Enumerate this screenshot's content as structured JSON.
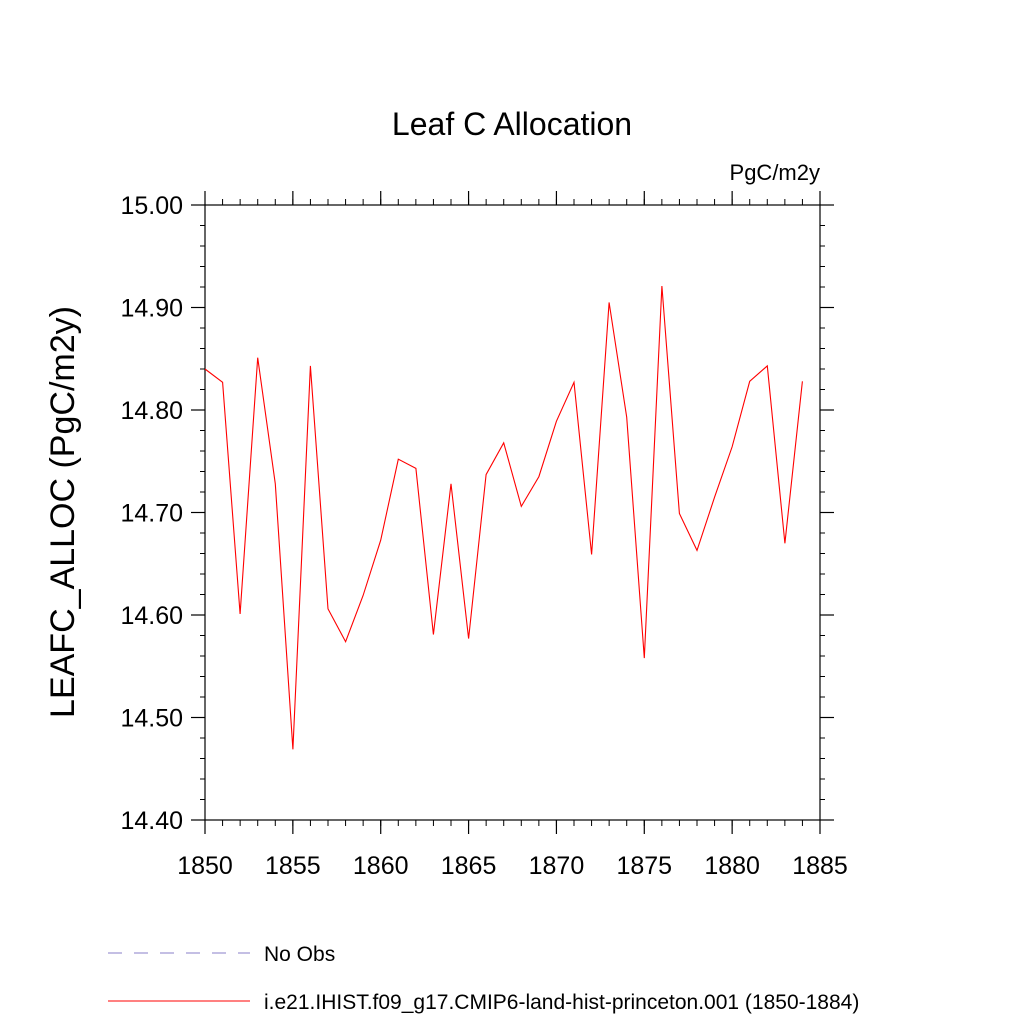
{
  "chart_data": {
    "type": "line",
    "title": "Leaf C Allocation",
    "units_label": "PgC/m2y",
    "ylabel": "LEAFC_ALLOC  (PgC/m2y)",
    "xlabel": "",
    "xlim": [
      1850,
      1885
    ],
    "ylim": [
      14.4,
      15.0
    ],
    "x_ticks": [
      1850,
      1855,
      1860,
      1865,
      1870,
      1875,
      1880,
      1885
    ],
    "x_tick_labels": [
      "1850",
      "1855",
      "1860",
      "1865",
      "1870",
      "1875",
      "1880",
      "1885"
    ],
    "y_ticks": [
      14.4,
      14.5,
      14.6,
      14.7,
      14.8,
      14.9,
      15.0
    ],
    "y_tick_labels": [
      "14.40",
      "14.50",
      "14.60",
      "14.70",
      "14.80",
      "14.90",
      "15.00"
    ],
    "grid": false,
    "legend_position": "bottom-left, below plot",
    "series": [
      {
        "name": "No Obs",
        "color": "#8a7fc8",
        "dash": "dashed",
        "x": [],
        "y": []
      },
      {
        "name": "i.e21.IHIST.f09_g17.CMIP6-land-hist-princeton.001 (1850-1884)",
        "color": "#ff0000",
        "dash": "solid",
        "x": [
          1850,
          1851,
          1852,
          1853,
          1854,
          1855,
          1856,
          1857,
          1858,
          1859,
          1860,
          1861,
          1862,
          1863,
          1864,
          1865,
          1866,
          1867,
          1868,
          1869,
          1870,
          1871,
          1872,
          1873,
          1874,
          1875,
          1876,
          1877,
          1878,
          1879,
          1880,
          1881,
          1882,
          1883,
          1884
        ],
        "y": [
          14.84,
          14.827,
          14.601,
          14.851,
          14.728,
          14.469,
          14.843,
          14.606,
          14.574,
          14.619,
          14.673,
          14.752,
          14.743,
          14.581,
          14.728,
          14.577,
          14.737,
          14.768,
          14.706,
          14.735,
          14.789,
          14.827,
          14.659,
          14.905,
          14.793,
          14.558,
          14.921,
          14.699,
          14.663,
          14.715,
          14.764,
          14.828,
          14.843,
          14.67,
          14.828
        ]
      }
    ]
  }
}
